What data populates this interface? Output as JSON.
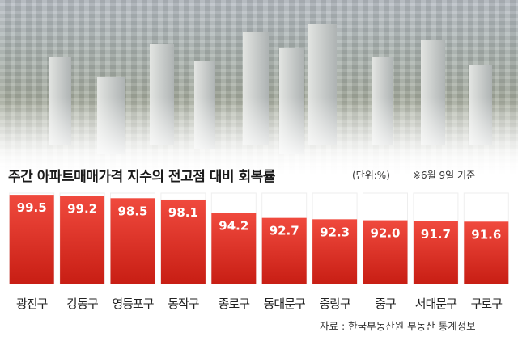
{
  "header": {
    "title": "주간 아파트매매가격 지수의 전고점 대비 회복률",
    "unit": "(단위:%)",
    "note": "※6월 9일 기준"
  },
  "source": "자료 : 한국부동산원 부동산 통계정보",
  "colors": {
    "bar_top": "#f04a3e",
    "bar_bottom": "#c81e14",
    "remainder": "#ffffff",
    "label": "#ffffff",
    "category": "#222222"
  },
  "chart_data": {
    "type": "bar",
    "categories": [
      "광진구",
      "강동구",
      "영등포구",
      "동작구",
      "종로구",
      "동대문구",
      "중랑구",
      "중구",
      "서대문구",
      "구로구"
    ],
    "values": [
      99.5,
      99.2,
      98.5,
      98.1,
      94.2,
      92.7,
      92.3,
      92.0,
      91.7,
      91.6
    ],
    "ylim": [
      0,
      100
    ],
    "xlabel": "",
    "ylabel": ""
  }
}
